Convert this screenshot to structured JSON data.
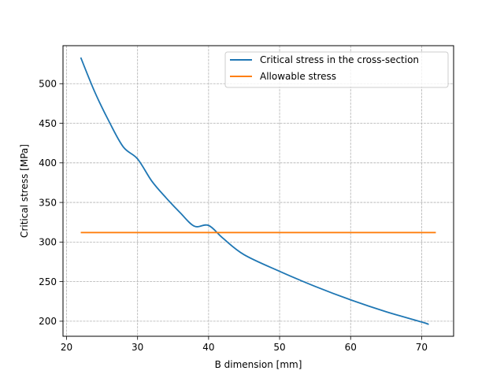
{
  "chart_data": {
    "type": "line",
    "title": "",
    "xlabel": "B dimension [mm]",
    "ylabel": "Critical stress [MPa]",
    "xlim": [
      19.5,
      74.5
    ],
    "ylim": [
      181,
      548
    ],
    "xticks": [
      20,
      30,
      40,
      50,
      60,
      70
    ],
    "yticks": [
      200,
      250,
      300,
      350,
      400,
      450,
      500
    ],
    "grid": true,
    "legend_position": "top-right",
    "series": [
      {
        "name": "Critical stress in the cross-section",
        "color": "#1f77b4",
        "x": [
          22,
          24,
          26,
          28,
          30,
          32,
          34,
          36,
          38,
          40,
          42,
          45,
          50,
          55,
          60,
          65,
          70,
          71
        ],
        "y": [
          533,
          489,
          452,
          420,
          405,
          377,
          356,
          337,
          320,
          321,
          305,
          284,
          263,
          244,
          227,
          212,
          199,
          196
        ]
      },
      {
        "name": "Allowable stress",
        "color": "#ff7f0e",
        "x": [
          22,
          72
        ],
        "y": [
          312,
          312
        ]
      }
    ]
  }
}
